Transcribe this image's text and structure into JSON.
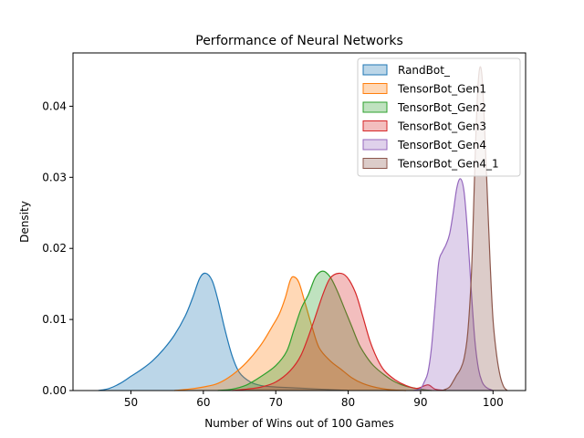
{
  "chart_data": {
    "type": "area",
    "title": "Performance of Neural Networks",
    "xlabel": "Number of Wins out of 100 Games",
    "ylabel": "Density",
    "xlim": [
      42.0,
      104.5
    ],
    "ylim": [
      0.0,
      0.0475
    ],
    "xticks": [
      50,
      60,
      70,
      80,
      90,
      100
    ],
    "yticks": [
      0.0,
      0.01,
      0.02,
      0.03,
      0.04
    ],
    "ytick_labels": [
      "0.00",
      "0.01",
      "0.02",
      "0.03",
      "0.04"
    ],
    "legend_position": "top-right",
    "series": [
      {
        "name": "RandBot_",
        "color": "#1f77b4",
        "points": [
          [
            45.5,
            0
          ],
          [
            47,
            0.0003
          ],
          [
            48.5,
            0.001
          ],
          [
            50,
            0.002
          ],
          [
            51.5,
            0.003
          ],
          [
            53,
            0.0042
          ],
          [
            54.5,
            0.0058
          ],
          [
            56,
            0.0078
          ],
          [
            57.5,
            0.0105
          ],
          [
            58.5,
            0.013
          ],
          [
            59.5,
            0.0158
          ],
          [
            60.3,
            0.0165
          ],
          [
            61.2,
            0.0155
          ],
          [
            62,
            0.0128
          ],
          [
            63,
            0.0085
          ],
          [
            64,
            0.0048
          ],
          [
            65,
            0.0025
          ],
          [
            66.5,
            0.0012
          ],
          [
            68,
            0.0007
          ],
          [
            70,
            0.0005
          ],
          [
            72,
            0.0004
          ],
          [
            74,
            0.0003
          ],
          [
            76,
            0.0002
          ],
          [
            78,
            0.0001
          ],
          [
            80,
            0
          ]
        ]
      },
      {
        "name": "TensorBot_Gen1",
        "color": "#ff7f0e",
        "points": [
          [
            56,
            0
          ],
          [
            58,
            0.0002
          ],
          [
            60,
            0.0005
          ],
          [
            62,
            0.001
          ],
          [
            64,
            0.0022
          ],
          [
            66,
            0.004
          ],
          [
            68,
            0.0065
          ],
          [
            69.5,
            0.009
          ],
          [
            70.5,
            0.0108
          ],
          [
            71.3,
            0.013
          ],
          [
            72,
            0.0155
          ],
          [
            72.5,
            0.016
          ],
          [
            73.2,
            0.0152
          ],
          [
            74,
            0.0125
          ],
          [
            75,
            0.009
          ],
          [
            76,
            0.006
          ],
          [
            77.5,
            0.0042
          ],
          [
            79,
            0.003
          ],
          [
            80.5,
            0.0018
          ],
          [
            82,
            0.001
          ],
          [
            84,
            0.0004
          ],
          [
            86,
            0.0001
          ],
          [
            88,
            0
          ]
        ]
      },
      {
        "name": "TensorBot_Gen2",
        "color": "#2ca02c",
        "points": [
          [
            62,
            0
          ],
          [
            64,
            0.0002
          ],
          [
            66,
            0.0008
          ],
          [
            68,
            0.002
          ],
          [
            70,
            0.0035
          ],
          [
            71.5,
            0.0055
          ],
          [
            72.5,
            0.0085
          ],
          [
            73.5,
            0.0115
          ],
          [
            74.5,
            0.0135
          ],
          [
            75.5,
            0.016
          ],
          [
            76.5,
            0.0168
          ],
          [
            77.5,
            0.016
          ],
          [
            78.5,
            0.014
          ],
          [
            79.5,
            0.0115
          ],
          [
            80.5,
            0.009
          ],
          [
            81.5,
            0.0065
          ],
          [
            82.5,
            0.0048
          ],
          [
            83.5,
            0.0035
          ],
          [
            85,
            0.0022
          ],
          [
            86.5,
            0.0012
          ],
          [
            88,
            0.0006
          ],
          [
            90,
            0.0002
          ],
          [
            91.5,
            0
          ]
        ]
      },
      {
        "name": "TensorBot_Gen3",
        "color": "#d62728",
        "points": [
          [
            64,
            0
          ],
          [
            66,
            0.0002
          ],
          [
            68,
            0.0005
          ],
          [
            70,
            0.0012
          ],
          [
            72,
            0.0028
          ],
          [
            73.5,
            0.005
          ],
          [
            75,
            0.009
          ],
          [
            76.5,
            0.0135
          ],
          [
            77.5,
            0.0158
          ],
          [
            78.7,
            0.0165
          ],
          [
            79.8,
            0.016
          ],
          [
            81,
            0.0138
          ],
          [
            82,
            0.0105
          ],
          [
            83,
            0.007
          ],
          [
            84,
            0.0045
          ],
          [
            85,
            0.0028
          ],
          [
            86.5,
            0.0015
          ],
          [
            88,
            0.0007
          ],
          [
            89.5,
            0.0003
          ],
          [
            91,
            0.0008
          ],
          [
            92,
            0.0002
          ],
          [
            93.5,
            0
          ]
        ]
      },
      {
        "name": "TensorBot_Gen4",
        "color": "#9467bd",
        "points": [
          [
            89,
            0
          ],
          [
            90,
            0.0003
          ],
          [
            90.5,
            0.0012
          ],
          [
            91,
            0.0025
          ],
          [
            91.5,
            0.006
          ],
          [
            92,
            0.012
          ],
          [
            92.5,
            0.018
          ],
          [
            93,
            0.0195
          ],
          [
            93.5,
            0.0205
          ],
          [
            94,
            0.022
          ],
          [
            94.5,
            0.025
          ],
          [
            95,
            0.0285
          ],
          [
            95.5,
            0.0298
          ],
          [
            96,
            0.028
          ],
          [
            96.5,
            0.022
          ],
          [
            97,
            0.014
          ],
          [
            97.5,
            0.007
          ],
          [
            98,
            0.003
          ],
          [
            98.5,
            0.0012
          ],
          [
            99,
            0.0005
          ],
          [
            99.5,
            0.0002
          ],
          [
            100,
            0
          ]
        ]
      },
      {
        "name": "TensorBot_Gen4_1",
        "color": "#8c564b",
        "points": [
          [
            93,
            0
          ],
          [
            93.5,
            0.0002
          ],
          [
            94,
            0.0005
          ],
          [
            94.5,
            0.0013
          ],
          [
            95,
            0.0022
          ],
          [
            95.5,
            0.003
          ],
          [
            96,
            0.0045
          ],
          [
            96.5,
            0.008
          ],
          [
            97,
            0.016
          ],
          [
            97.3,
            0.025
          ],
          [
            97.6,
            0.035
          ],
          [
            97.9,
            0.0425
          ],
          [
            98.2,
            0.0455
          ],
          [
            98.5,
            0.044
          ],
          [
            98.8,
            0.038
          ],
          [
            99.2,
            0.028
          ],
          [
            99.6,
            0.018
          ],
          [
            100,
            0.01
          ],
          [
            100.5,
            0.005
          ],
          [
            101,
            0.002
          ],
          [
            101.5,
            0.0005
          ],
          [
            102,
            0
          ]
        ]
      }
    ]
  }
}
